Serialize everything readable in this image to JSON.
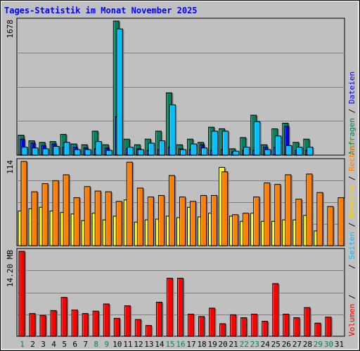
{
  "chart_data": [
    {
      "type": "bar",
      "title": "Tages-Statistik im Monat November 2025",
      "y_max_label": "1678",
      "categories": [
        "1",
        "2",
        "3",
        "4",
        "5",
        "6",
        "7",
        "8",
        "9",
        "10",
        "11",
        "12",
        "13",
        "14",
        "15",
        "16",
        "17",
        "18",
        "19",
        "20",
        "21",
        "22",
        "23",
        "24",
        "25",
        "26",
        "27",
        "28",
        "29",
        "30",
        "31"
      ],
      "series": [
        {
          "name": "Anfragen",
          "color": "#008060",
          "values": [
            250,
            180,
            160,
            170,
            260,
            140,
            130,
            300,
            130,
            1678,
            200,
            130,
            200,
            300,
            780,
            130,
            200,
            160,
            350,
            330,
            80,
            220,
            500,
            130,
            330,
            400,
            160,
            200,
            null,
            null,
            null
          ]
        },
        {
          "name": "Dateien",
          "color": "#00c0ff",
          "values": [
            100,
            90,
            80,
            110,
            160,
            70,
            70,
            170,
            60,
            1580,
            100,
            70,
            150,
            180,
            630,
            70,
            140,
            90,
            300,
            300,
            50,
            100,
            420,
            70,
            240,
            120,
            100,
            100,
            null,
            null,
            null
          ]
        }
      ],
      "overlay": {
        "name": "Seiten",
        "color": "#0000ff",
        "values": [
          200,
          150,
          120,
          140,
          100,
          100,
          90,
          80,
          90,
          480,
          80,
          80,
          60,
          70,
          100,
          80,
          70,
          130,
          60,
          70,
          40,
          60,
          60,
          100,
          100,
          360,
          60,
          60,
          null,
          null,
          null
        ]
      },
      "weekend_days": [
        "1",
        "8",
        "9",
        "15",
        "16",
        "22",
        "23",
        "29",
        "30"
      ],
      "ylabel_parts": [
        {
          "text": "Anfragen",
          "color": "#008060"
        },
        {
          "text": " / ",
          "color": "#000000"
        },
        {
          "text": "Dateien",
          "color": "#0000ff"
        }
      ]
    },
    {
      "type": "bar",
      "y_max_label": "114",
      "categories": [
        "1",
        "2",
        "3",
        "4",
        "5",
        "6",
        "7",
        "8",
        "9",
        "10",
        "11",
        "12",
        "13",
        "14",
        "15",
        "16",
        "17",
        "18",
        "19",
        "20",
        "21",
        "22",
        "23",
        "24",
        "25",
        "26",
        "27",
        "28",
        "29",
        "30",
        "31"
      ],
      "series": [
        {
          "name": "Seiten",
          "color": "#ffff00",
          "values": [
            47,
            50,
            52,
            47,
            45,
            43,
            34,
            44,
            35,
            40,
            62,
            32,
            35,
            36,
            40,
            38,
            52,
            39,
            44,
            106,
            40,
            33,
            44,
            33,
            33,
            35,
            35,
            41,
            20,
            null,
            null
          ]
        },
        {
          "name": "Besuche",
          "color": "#ff8000",
          "values": [
            114,
            73,
            84,
            88,
            96,
            65,
            80,
            74,
            73,
            60,
            113,
            78,
            66,
            68,
            95,
            66,
            60,
            68,
            68,
            100,
            42,
            44,
            66,
            85,
            83,
            96,
            63,
            97,
            72,
            53,
            65
          ]
        }
      ],
      "ylabel_parts": [
        {
          "text": " / ",
          "color": "#000000"
        },
        {
          "text": "Seiten",
          "color": "#00c0ff"
        },
        {
          "text": " / ",
          "color": "#000000"
        },
        {
          "text": "Besuche",
          "color": "#ffd000"
        },
        {
          "text": " / ",
          "color": "#000000"
        },
        {
          "text": "Rechner",
          "color": "#ff8000"
        }
      ]
    },
    {
      "type": "bar",
      "y_max_label": "14.20 MB",
      "categories": [
        "1",
        "2",
        "3",
        "4",
        "5",
        "6",
        "7",
        "8",
        "9",
        "10",
        "11",
        "12",
        "13",
        "14",
        "15",
        "16",
        "17",
        "18",
        "19",
        "20",
        "21",
        "22",
        "23",
        "24",
        "25",
        "26",
        "27",
        "28",
        "29",
        "30",
        "31"
      ],
      "series": [
        {
          "name": "Volumen",
          "color": "#ff0000",
          "values": [
            14.2,
            3.8,
            3.5,
            4.3,
            6.5,
            4.4,
            3.8,
            4.2,
            5.4,
            3.0,
            5.1,
            2.8,
            1.8,
            5.7,
            9.7,
            9.7,
            3.7,
            3.3,
            4.7,
            2.1,
            3.6,
            3.1,
            3.7,
            2.5,
            8.8,
            3.7,
            3.1,
            4.8,
            2.2,
            3.2,
            null
          ]
        }
      ],
      "ylabel_parts": [
        {
          "text": "Volumen",
          "color": "#ff0000"
        },
        {
          "text": " / ",
          "color": "#000000"
        }
      ]
    }
  ]
}
